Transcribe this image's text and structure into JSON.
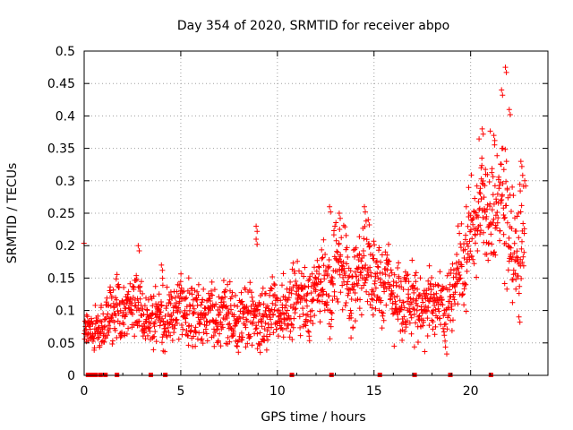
{
  "chart_data": {
    "type": "scatter",
    "title": "Day 354 of 2020, SRMTID for receiver abpo",
    "xlabel": "GPS time / hours",
    "ylabel": "SRMTID / TECUs",
    "xlim": [
      0,
      24
    ],
    "ylim": [
      0,
      0.5
    ],
    "grid": true,
    "marker": "+",
    "color": "#ff0000",
    "x_ticks": [
      0,
      5,
      10,
      15,
      20
    ],
    "x_tick_labels": [
      "0",
      "5",
      "10",
      "15",
      "20"
    ],
    "y_ticks": [
      0,
      0.05,
      0.1,
      0.15,
      0.2,
      0.25,
      0.3,
      0.35,
      0.4,
      0.45,
      0.5
    ],
    "y_tick_labels": [
      "0",
      "0.05",
      "0.1",
      "0.15",
      "0.2",
      "0.25",
      "0.3",
      "0.35",
      "0.4",
      "0.45",
      "0.5"
    ],
    "baseline_hours": [
      0.2,
      0.4,
      0.6,
      0.85,
      1.1,
      1.7,
      3.45,
      4.2,
      10.75,
      12.8,
      15.3,
      17.1,
      18.95,
      21.05
    ],
    "trend": [
      {
        "x": 0.0,
        "y": 0.06,
        "spread": 0.03
      },
      {
        "x": 1.0,
        "y": 0.08,
        "spread": 0.05
      },
      {
        "x": 2.0,
        "y": 0.11,
        "spread": 0.06
      },
      {
        "x": 3.0,
        "y": 0.1,
        "spread": 0.06
      },
      {
        "x": 4.0,
        "y": 0.09,
        "spread": 0.06
      },
      {
        "x": 5.0,
        "y": 0.1,
        "spread": 0.06
      },
      {
        "x": 6.0,
        "y": 0.09,
        "spread": 0.06
      },
      {
        "x": 7.0,
        "y": 0.1,
        "spread": 0.06
      },
      {
        "x": 8.0,
        "y": 0.09,
        "spread": 0.06
      },
      {
        "x": 9.0,
        "y": 0.09,
        "spread": 0.06
      },
      {
        "x": 10.0,
        "y": 0.1,
        "spread": 0.06
      },
      {
        "x": 11.0,
        "y": 0.11,
        "spread": 0.06
      },
      {
        "x": 12.0,
        "y": 0.12,
        "spread": 0.07
      },
      {
        "x": 13.0,
        "y": 0.16,
        "spread": 0.08
      },
      {
        "x": 14.0,
        "y": 0.14,
        "spread": 0.08
      },
      {
        "x": 15.0,
        "y": 0.16,
        "spread": 0.08
      },
      {
        "x": 16.0,
        "y": 0.12,
        "spread": 0.07
      },
      {
        "x": 17.0,
        "y": 0.11,
        "spread": 0.07
      },
      {
        "x": 18.0,
        "y": 0.1,
        "spread": 0.06
      },
      {
        "x": 19.0,
        "y": 0.11,
        "spread": 0.07
      },
      {
        "x": 20.0,
        "y": 0.22,
        "spread": 0.1
      },
      {
        "x": 21.0,
        "y": 0.28,
        "spread": 0.12
      },
      {
        "x": 22.0,
        "y": 0.22,
        "spread": 0.13
      },
      {
        "x": 22.8,
        "y": 0.2,
        "spread": 0.12
      }
    ],
    "highlights": [
      {
        "x": 2.8,
        "y": 0.2
      },
      {
        "x": 4.0,
        "y": 0.17
      },
      {
        "x": 8.9,
        "y": 0.23
      },
      {
        "x": 8.9,
        "y": 0.21
      },
      {
        "x": 12.7,
        "y": 0.26
      },
      {
        "x": 13.2,
        "y": 0.25
      },
      {
        "x": 14.5,
        "y": 0.26
      },
      {
        "x": 14.7,
        "y": 0.24
      },
      {
        "x": 20.6,
        "y": 0.38
      },
      {
        "x": 21.2,
        "y": 0.37
      },
      {
        "x": 21.6,
        "y": 0.44
      },
      {
        "x": 21.8,
        "y": 0.475
      },
      {
        "x": 22.0,
        "y": 0.41
      },
      {
        "x": 22.6,
        "y": 0.33
      },
      {
        "x": 22.8,
        "y": 0.3
      },
      {
        "x": 22.5,
        "y": 0.09
      },
      {
        "x": 20.5,
        "y": 0.28
      }
    ]
  }
}
